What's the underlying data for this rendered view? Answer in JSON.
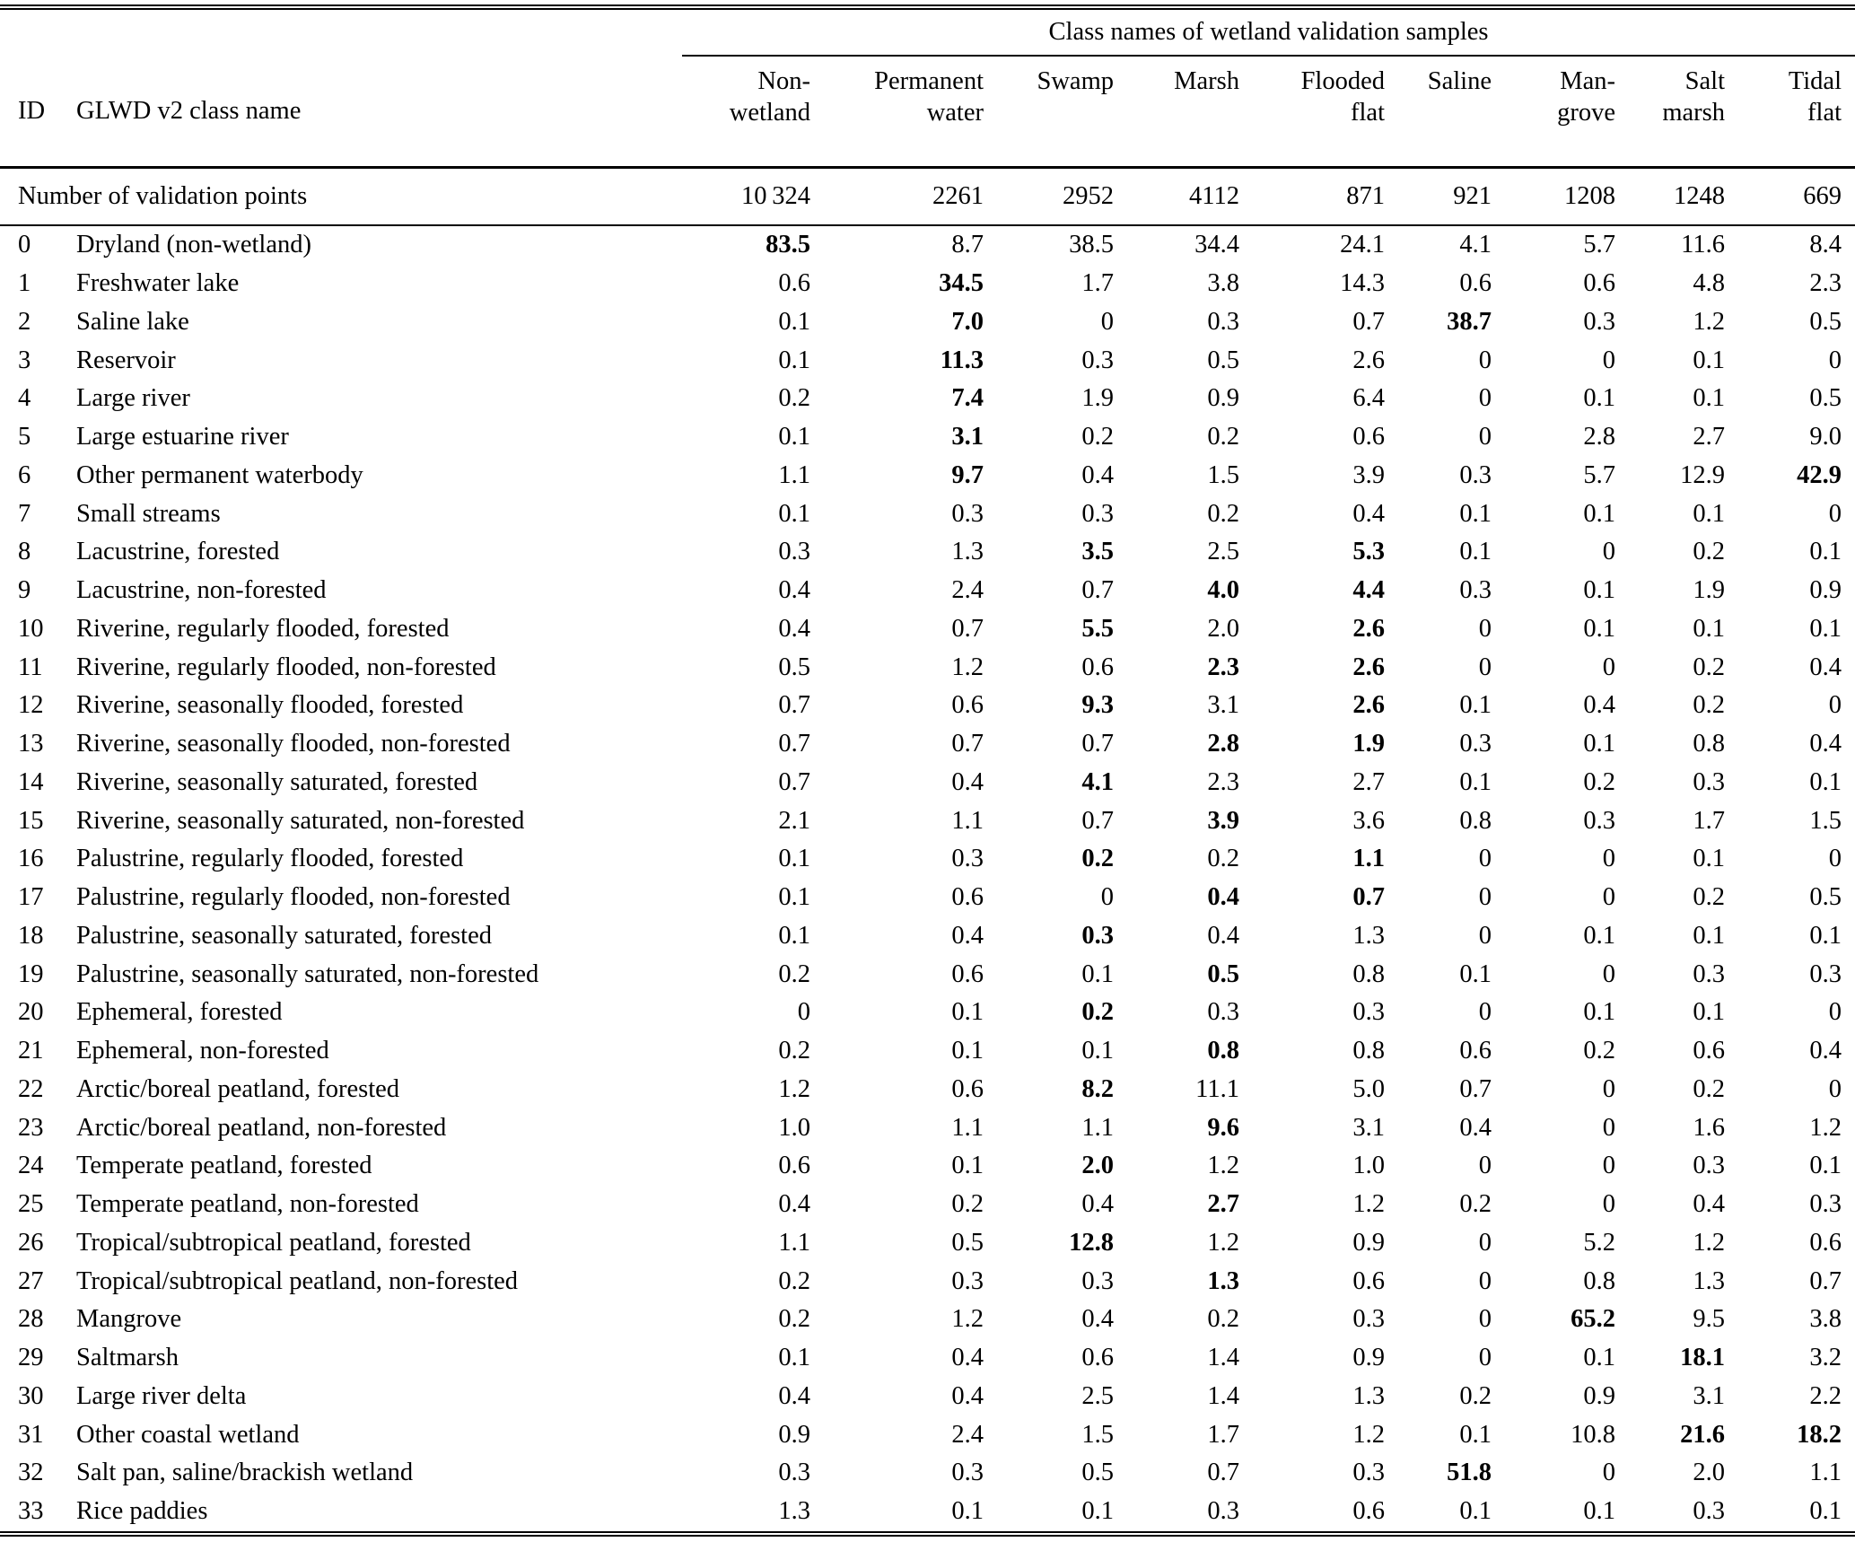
{
  "table": {
    "span_title": "Class names of wetland validation samples",
    "id_header": "ID",
    "name_header": "GLWD v2 class name",
    "columns": [
      {
        "line1": "Non-",
        "line2": "wetland"
      },
      {
        "line1": "Permanent",
        "line2": "water"
      },
      {
        "line1": "Swamp",
        "line2": ""
      },
      {
        "line1": "Marsh",
        "line2": ""
      },
      {
        "line1": "Flooded",
        "line2": "flat"
      },
      {
        "line1": "Saline",
        "line2": ""
      },
      {
        "line1": "Man-",
        "line2": "grove"
      },
      {
        "line1": "Salt",
        "line2": "marsh"
      },
      {
        "line1": "Tidal",
        "line2": "flat"
      }
    ],
    "points_label": "Number of validation points",
    "points": [
      "10 324",
      "2261",
      "2952",
      "4112",
      "871",
      "921",
      "1208",
      "1248",
      "669"
    ],
    "rows": [
      {
        "id": "0",
        "name": "Dryland (non-wetland)",
        "values": [
          "83.5",
          "8.7",
          "38.5",
          "34.4",
          "24.1",
          "4.1",
          "5.7",
          "11.6",
          "8.4"
        ],
        "bold": [
          0
        ]
      },
      {
        "id": "1",
        "name": "Freshwater lake",
        "values": [
          "0.6",
          "34.5",
          "1.7",
          "3.8",
          "14.3",
          "0.6",
          "0.6",
          "4.8",
          "2.3"
        ],
        "bold": [
          1
        ]
      },
      {
        "id": "2",
        "name": "Saline lake",
        "values": [
          "0.1",
          "7.0",
          "0",
          "0.3",
          "0.7",
          "38.7",
          "0.3",
          "1.2",
          "0.5"
        ],
        "bold": [
          1,
          5
        ]
      },
      {
        "id": "3",
        "name": "Reservoir",
        "values": [
          "0.1",
          "11.3",
          "0.3",
          "0.5",
          "2.6",
          "0",
          "0",
          "0.1",
          "0"
        ],
        "bold": [
          1
        ]
      },
      {
        "id": "4",
        "name": "Large river",
        "values": [
          "0.2",
          "7.4",
          "1.9",
          "0.9",
          "6.4",
          "0",
          "0.1",
          "0.1",
          "0.5"
        ],
        "bold": [
          1
        ]
      },
      {
        "id": "5",
        "name": "Large estuarine river",
        "values": [
          "0.1",
          "3.1",
          "0.2",
          "0.2",
          "0.6",
          "0",
          "2.8",
          "2.7",
          "9.0"
        ],
        "bold": [
          1
        ]
      },
      {
        "id": "6",
        "name": "Other permanent waterbody",
        "values": [
          "1.1",
          "9.7",
          "0.4",
          "1.5",
          "3.9",
          "0.3",
          "5.7",
          "12.9",
          "42.9"
        ],
        "bold": [
          1,
          8
        ]
      },
      {
        "id": "7",
        "name": "Small streams",
        "values": [
          "0.1",
          "0.3",
          "0.3",
          "0.2",
          "0.4",
          "0.1",
          "0.1",
          "0.1",
          "0"
        ],
        "bold": []
      },
      {
        "id": "8",
        "name": "Lacustrine, forested",
        "values": [
          "0.3",
          "1.3",
          "3.5",
          "2.5",
          "5.3",
          "0.1",
          "0",
          "0.2",
          "0.1"
        ],
        "bold": [
          2,
          4
        ]
      },
      {
        "id": "9",
        "name": "Lacustrine, non-forested",
        "values": [
          "0.4",
          "2.4",
          "0.7",
          "4.0",
          "4.4",
          "0.3",
          "0.1",
          "1.9",
          "0.9"
        ],
        "bold": [
          3,
          4
        ]
      },
      {
        "id": "10",
        "name": "Riverine, regularly flooded, forested",
        "values": [
          "0.4",
          "0.7",
          "5.5",
          "2.0",
          "2.6",
          "0",
          "0.1",
          "0.1",
          "0.1"
        ],
        "bold": [
          2,
          4
        ]
      },
      {
        "id": "11",
        "name": "Riverine, regularly flooded, non-forested",
        "values": [
          "0.5",
          "1.2",
          "0.6",
          "2.3",
          "2.6",
          "0",
          "0",
          "0.2",
          "0.4"
        ],
        "bold": [
          3,
          4
        ]
      },
      {
        "id": "12",
        "name": "Riverine, seasonally flooded, forested",
        "values": [
          "0.7",
          "0.6",
          "9.3",
          "3.1",
          "2.6",
          "0.1",
          "0.4",
          "0.2",
          "0"
        ],
        "bold": [
          2,
          4
        ]
      },
      {
        "id": "13",
        "name": "Riverine, seasonally flooded, non-forested",
        "values": [
          "0.7",
          "0.7",
          "0.7",
          "2.8",
          "1.9",
          "0.3",
          "0.1",
          "0.8",
          "0.4"
        ],
        "bold": [
          3,
          4
        ]
      },
      {
        "id": "14",
        "name": "Riverine, seasonally saturated, forested",
        "values": [
          "0.7",
          "0.4",
          "4.1",
          "2.3",
          "2.7",
          "0.1",
          "0.2",
          "0.3",
          "0.1"
        ],
        "bold": [
          2
        ]
      },
      {
        "id": "15",
        "name": "Riverine, seasonally saturated, non-forested",
        "values": [
          "2.1",
          "1.1",
          "0.7",
          "3.9",
          "3.6",
          "0.8",
          "0.3",
          "1.7",
          "1.5"
        ],
        "bold": [
          3
        ]
      },
      {
        "id": "16",
        "name": "Palustrine, regularly flooded, forested",
        "values": [
          "0.1",
          "0.3",
          "0.2",
          "0.2",
          "1.1",
          "0",
          "0",
          "0.1",
          "0"
        ],
        "bold": [
          2,
          4
        ]
      },
      {
        "id": "17",
        "name": "Palustrine, regularly flooded, non-forested",
        "values": [
          "0.1",
          "0.6",
          "0",
          "0.4",
          "0.7",
          "0",
          "0",
          "0.2",
          "0.5"
        ],
        "bold": [
          3,
          4
        ]
      },
      {
        "id": "18",
        "name": "Palustrine, seasonally saturated, forested",
        "values": [
          "0.1",
          "0.4",
          "0.3",
          "0.4",
          "1.3",
          "0",
          "0.1",
          "0.1",
          "0.1"
        ],
        "bold": [
          2
        ]
      },
      {
        "id": "19",
        "name": "Palustrine, seasonally saturated, non-forested",
        "values": [
          "0.2",
          "0.6",
          "0.1",
          "0.5",
          "0.8",
          "0.1",
          "0",
          "0.3",
          "0.3"
        ],
        "bold": [
          3
        ]
      },
      {
        "id": "20",
        "name": "Ephemeral, forested",
        "values": [
          "0",
          "0.1",
          "0.2",
          "0.3",
          "0.3",
          "0",
          "0.1",
          "0.1",
          "0"
        ],
        "bold": [
          2
        ]
      },
      {
        "id": "21",
        "name": "Ephemeral, non-forested",
        "values": [
          "0.2",
          "0.1",
          "0.1",
          "0.8",
          "0.8",
          "0.6",
          "0.2",
          "0.6",
          "0.4"
        ],
        "bold": [
          3
        ]
      },
      {
        "id": "22",
        "name": "Arctic/boreal peatland, forested",
        "values": [
          "1.2",
          "0.6",
          "8.2",
          "11.1",
          "5.0",
          "0.7",
          "0",
          "0.2",
          "0"
        ],
        "bold": [
          2
        ]
      },
      {
        "id": "23",
        "name": "Arctic/boreal peatland, non-forested",
        "values": [
          "1.0",
          "1.1",
          "1.1",
          "9.6",
          "3.1",
          "0.4",
          "0",
          "1.6",
          "1.2"
        ],
        "bold": [
          3
        ]
      },
      {
        "id": "24",
        "name": "Temperate peatland, forested",
        "values": [
          "0.6",
          "0.1",
          "2.0",
          "1.2",
          "1.0",
          "0",
          "0",
          "0.3",
          "0.1"
        ],
        "bold": [
          2
        ]
      },
      {
        "id": "25",
        "name": "Temperate peatland, non-forested",
        "values": [
          "0.4",
          "0.2",
          "0.4",
          "2.7",
          "1.2",
          "0.2",
          "0",
          "0.4",
          "0.3"
        ],
        "bold": [
          3
        ]
      },
      {
        "id": "26",
        "name": "Tropical/subtropical peatland, forested",
        "values": [
          "1.1",
          "0.5",
          "12.8",
          "1.2",
          "0.9",
          "0",
          "5.2",
          "1.2",
          "0.6"
        ],
        "bold": [
          2
        ]
      },
      {
        "id": "27",
        "name": "Tropical/subtropical peatland, non-forested",
        "values": [
          "0.2",
          "0.3",
          "0.3",
          "1.3",
          "0.6",
          "0",
          "0.8",
          "1.3",
          "0.7"
        ],
        "bold": [
          3
        ]
      },
      {
        "id": "28",
        "name": "Mangrove",
        "values": [
          "0.2",
          "1.2",
          "0.4",
          "0.2",
          "0.3",
          "0",
          "65.2",
          "9.5",
          "3.8"
        ],
        "bold": [
          6
        ]
      },
      {
        "id": "29",
        "name": "Saltmarsh",
        "values": [
          "0.1",
          "0.4",
          "0.6",
          "1.4",
          "0.9",
          "0",
          "0.1",
          "18.1",
          "3.2"
        ],
        "bold": [
          7
        ]
      },
      {
        "id": "30",
        "name": "Large river delta",
        "values": [
          "0.4",
          "0.4",
          "2.5",
          "1.4",
          "1.3",
          "0.2",
          "0.9",
          "3.1",
          "2.2"
        ],
        "bold": []
      },
      {
        "id": "31",
        "name": "Other coastal wetland",
        "values": [
          "0.9",
          "2.4",
          "1.5",
          "1.7",
          "1.2",
          "0.1",
          "10.8",
          "21.6",
          "18.2"
        ],
        "bold": [
          7,
          8
        ]
      },
      {
        "id": "32",
        "name": "Salt pan, saline/brackish wetland",
        "values": [
          "0.3",
          "0.3",
          "0.5",
          "0.7",
          "0.3",
          "51.8",
          "0",
          "2.0",
          "1.1"
        ],
        "bold": [
          5
        ]
      },
      {
        "id": "33",
        "name": "Rice paddies",
        "values": [
          "1.3",
          "0.1",
          "0.1",
          "0.3",
          "0.6",
          "0.1",
          "0.1",
          "0.3",
          "0.1"
        ],
        "bold": []
      }
    ]
  }
}
